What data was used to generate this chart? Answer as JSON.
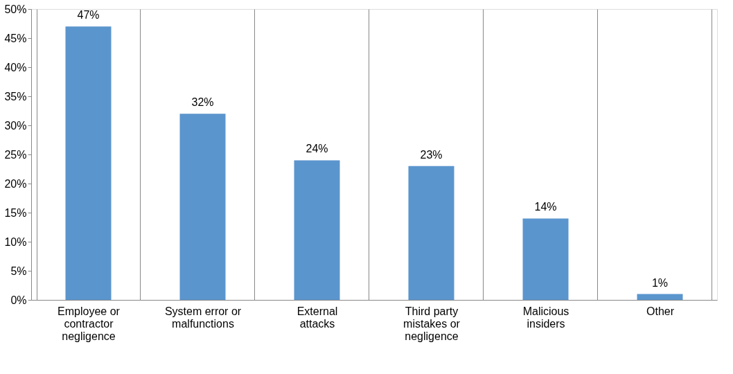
{
  "chart_data": {
    "type": "bar",
    "categories": [
      "Employee or contractor negligence",
      "System error or malfunctions",
      "External attacks",
      "Third party mistakes or negligence",
      "Malicious insiders",
      "Other"
    ],
    "values": [
      47,
      32,
      24,
      23,
      14,
      1
    ],
    "value_labels": [
      "47%",
      "32%",
      "24%",
      "23%",
      "14%",
      "1%"
    ],
    "color": "#5b95cd",
    "ylim": [
      0,
      50
    ],
    "yticks": [
      {
        "value": 0,
        "label": "0%"
      },
      {
        "value": 5,
        "label": "5%"
      },
      {
        "value": 10,
        "label": "10%"
      },
      {
        "value": 15,
        "label": "15%"
      },
      {
        "value": 20,
        "label": "20%"
      },
      {
        "value": 25,
        "label": "25%"
      },
      {
        "value": 30,
        "label": "30%"
      },
      {
        "value": 35,
        "label": "35%"
      },
      {
        "value": 40,
        "label": "40%"
      },
      {
        "value": 45,
        "label": "45%"
      },
      {
        "value": 50,
        "label": "50%"
      }
    ],
    "grid": "x"
  }
}
